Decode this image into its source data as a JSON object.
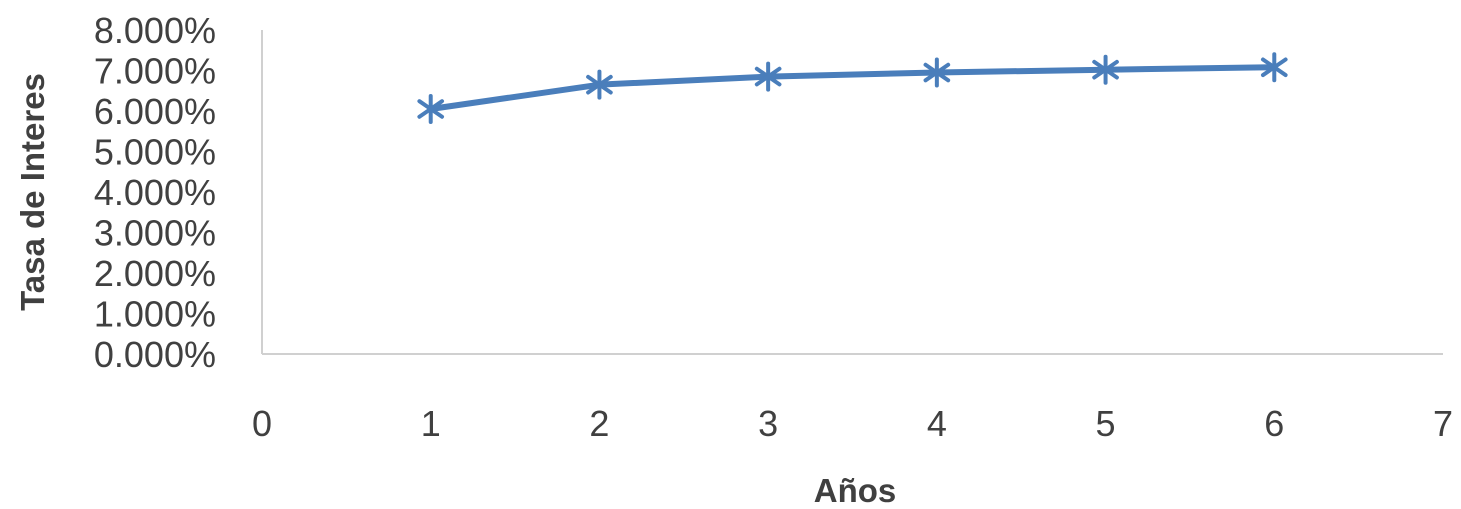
{
  "chart_data": {
    "type": "scatter",
    "title": "",
    "xlabel": "Años",
    "ylabel": "Tasa de Interes",
    "xlim": [
      0,
      7
    ],
    "ylim": [
      0,
      0.08
    ],
    "x_ticks": [
      0,
      1,
      2,
      3,
      4,
      5,
      6,
      7
    ],
    "x_tick_labels": [
      "0",
      "1",
      "2",
      "3",
      "4",
      "5",
      "6",
      "7"
    ],
    "y_ticks": [
      0,
      0.01,
      0.02,
      0.03,
      0.04,
      0.05,
      0.06,
      0.07,
      0.08
    ],
    "y_tick_labels": [
      "0.000%",
      "1.000%",
      "2.000%",
      "3.000%",
      "4.000%",
      "5.000%",
      "6.000%",
      "7.000%",
      "8.000%"
    ],
    "grid": false,
    "legend": "none",
    "marker": "asterisk",
    "color": "#4a7ebb",
    "series": [
      {
        "x": [
          1,
          2,
          3,
          4,
          5,
          6
        ],
        "y": [
          0.0605,
          0.0665,
          0.0685,
          0.0695,
          0.0702,
          0.0708
        ]
      }
    ]
  }
}
